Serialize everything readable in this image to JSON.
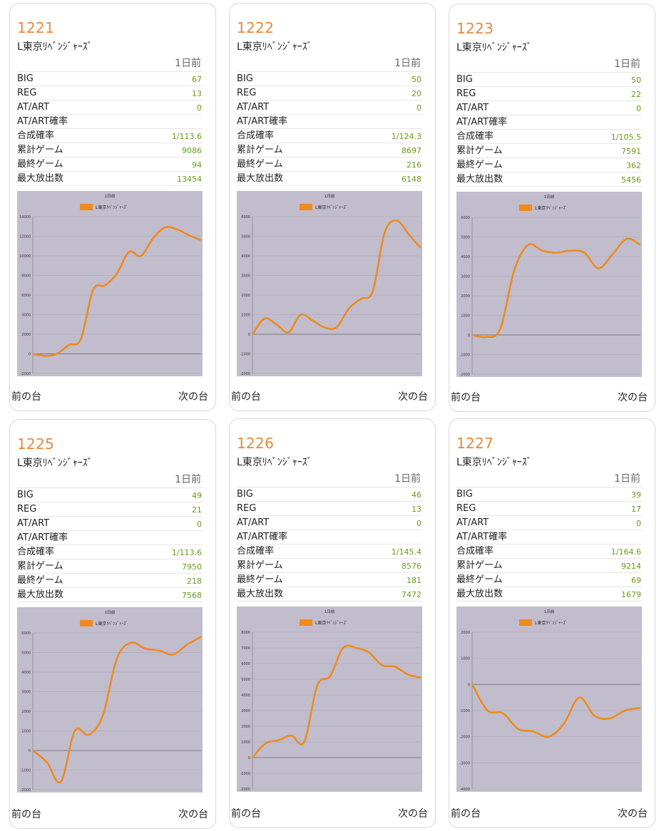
{
  "cards": [
    {
      "number": "1221",
      "model": "L東京ﾘﾍﾞﾝｼﾞｬｰｽﾞ",
      "period": "1日前",
      "stats": [
        {
          "label": "BIG",
          "value": "67"
        },
        {
          "label": "REG",
          "value": "13"
        },
        {
          "label": "AT/ART",
          "value": "0"
        },
        {
          "label": "AT/ART確率",
          "value": ""
        },
        {
          "label": "合成確率",
          "value": "1/113.6"
        },
        {
          "label": "累計ゲーム",
          "value": "9086"
        },
        {
          "label": "最終ゲーム",
          "value": "94"
        },
        {
          "label": "最大放出数",
          "value": "13454"
        }
      ],
      "prev_label": "前の台",
      "next_label": "次の台",
      "chart_data": {
        "type": "line",
        "title": "1日前",
        "legend": [
          "L東京ﾘﾍﾞﾝｼﾞｬｰｽﾞ"
        ],
        "series": [
          {
            "name": "L東京ﾘﾍﾞﾝｼﾞｬｰｽﾞ",
            "color": "#ef8a1e",
            "values": [
              0,
              -200,
              0,
              900,
              1500,
              6500,
              7000,
              8200,
              10400,
              10000,
              11800,
              12900,
              12700,
              12100,
              11600
            ]
          }
        ],
        "ylim": [
          -2000,
          14000
        ],
        "yticks": [
          -2000,
          0,
          2000,
          4000,
          6000,
          8000,
          10000,
          12000,
          14000
        ]
      }
    },
    {
      "number": "1222",
      "model": "L東京ﾘﾍﾞﾝｼﾞｬｰｽﾞ",
      "period": "1日前",
      "stats": [
        {
          "label": "BIG",
          "value": "50"
        },
        {
          "label": "REG",
          "value": "20"
        },
        {
          "label": "AT/ART",
          "value": "0"
        },
        {
          "label": "AT/ART確率",
          "value": ""
        },
        {
          "label": "合成確率",
          "value": "1/124.3"
        },
        {
          "label": "累計ゲーム",
          "value": "8697"
        },
        {
          "label": "最終ゲーム",
          "value": "216"
        },
        {
          "label": "最大放出数",
          "value": "6148"
        }
      ],
      "prev_label": "前の台",
      "next_label": "次の台",
      "chart_data": {
        "type": "line",
        "title": "1日前",
        "legend": [
          "L東京ﾘﾍﾞﾝｼﾞｬｰｽﾞ"
        ],
        "series": [
          {
            "name": "L東京ﾘﾍﾞﾝｼﾞｬｰｽﾞ",
            "color": "#ef8a1e",
            "values": [
              0,
              800,
              500,
              100,
              1000,
              700,
              350,
              350,
              1300,
              1800,
              2200,
              5200,
              5800,
              5100,
              4400
            ]
          }
        ],
        "ylim": [
          -2000,
          6000
        ],
        "yticks": [
          -2000,
          -1000,
          0,
          1000,
          2000,
          3000,
          4000,
          5000,
          6000
        ]
      }
    },
    {
      "number": "1223",
      "model": "L東京ﾘﾍﾞﾝｼﾞｬｰｽﾞ",
      "period": "1日前",
      "stats": [
        {
          "label": "BIG",
          "value": "50"
        },
        {
          "label": "REG",
          "value": "22"
        },
        {
          "label": "AT/ART",
          "value": "0"
        },
        {
          "label": "AT/ART確率",
          "value": ""
        },
        {
          "label": "合成確率",
          "value": "1/105.5"
        },
        {
          "label": "累計ゲーム",
          "value": "7591"
        },
        {
          "label": "最終ゲーム",
          "value": "362"
        },
        {
          "label": "最大放出数",
          "value": "5456"
        }
      ],
      "prev_label": "前の台",
      "next_label": "次の台",
      "chart_data": {
        "type": "line",
        "title": "1日前",
        "legend": [
          "L東京ﾘﾍﾞﾝｼﾞｬｰｽﾞ"
        ],
        "series": [
          {
            "name": "L東京ﾘﾍﾞﾝｼﾞｬｰｽﾞ",
            "color": "#ef8a1e",
            "values": [
              0,
              -100,
              300,
              3300,
              4600,
              4300,
              4200,
              4300,
              4200,
              3400,
              4100,
              4900,
              4600
            ]
          }
        ],
        "ylim": [
          -2000,
          6000
        ],
        "yticks": [
          -2000,
          -1000,
          0,
          1000,
          2000,
          3000,
          4000,
          5000,
          6000
        ]
      }
    },
    {
      "number": "1225",
      "model": "L東京ﾘﾍﾞﾝｼﾞｬｰｽﾞ",
      "period": "1日前",
      "stats": [
        {
          "label": "BIG",
          "value": "49"
        },
        {
          "label": "REG",
          "value": "21"
        },
        {
          "label": "AT/ART",
          "value": "0"
        },
        {
          "label": "AT/ART確率",
          "value": ""
        },
        {
          "label": "合成確率",
          "value": "1/113.6"
        },
        {
          "label": "累計ゲーム",
          "value": "7950"
        },
        {
          "label": "最終ゲーム",
          "value": "218"
        },
        {
          "label": "最大放出数",
          "value": "7568"
        }
      ],
      "prev_label": "前の台",
      "next_label": "次の台",
      "chart_data": {
        "type": "line",
        "title": "1日前",
        "legend": [
          "L東京ﾘﾍﾞﾝｼﾞｬｰｽﾞ"
        ],
        "series": [
          {
            "name": "L東京ﾘﾍﾞﾝｼﾞｬｰｽﾞ",
            "color": "#ef8a1e",
            "values": [
              0,
              -600,
              -1600,
              1000,
              800,
              1800,
              4700,
              5500,
              5200,
              5100,
              4900,
              5400,
              5800
            ]
          }
        ],
        "ylim": [
          -2000,
          6000
        ],
        "yticks": [
          -2000,
          -1000,
          0,
          1000,
          2000,
          3000,
          4000,
          5000,
          6000
        ]
      }
    },
    {
      "number": "1226",
      "model": "L東京ﾘﾍﾞﾝｼﾞｬｰｽﾞ",
      "period": "1日前",
      "stats": [
        {
          "label": "BIG",
          "value": "46"
        },
        {
          "label": "REG",
          "value": "13"
        },
        {
          "label": "AT/ART",
          "value": "0"
        },
        {
          "label": "AT/ART確率",
          "value": ""
        },
        {
          "label": "合成確率",
          "value": "1/145.4"
        },
        {
          "label": "累計ゲーム",
          "value": "8576"
        },
        {
          "label": "最終ゲーム",
          "value": "181"
        },
        {
          "label": "最大放出数",
          "value": "7472"
        }
      ],
      "prev_label": "前の台",
      "next_label": "次の台",
      "chart_data": {
        "type": "line",
        "title": "1日前",
        "legend": [
          "L東京ﾘﾍﾞﾝｼﾞｬｰｽﾞ"
        ],
        "series": [
          {
            "name": "L東京ﾘﾍﾞﾝｼﾞｬｰｽﾞ",
            "color": "#ef8a1e",
            "values": [
              0,
              900,
              1100,
              1400,
              1000,
              4600,
              5200,
              7000,
              7000,
              6700,
              5900,
              5800,
              5300,
              5100
            ]
          }
        ],
        "ylim": [
          -2000,
          8000
        ],
        "yticks": [
          -2000,
          -1000,
          0,
          1000,
          2000,
          3000,
          4000,
          5000,
          6000,
          7000,
          8000
        ]
      }
    },
    {
      "number": "1227",
      "model": "L東京ﾘﾍﾞﾝｼﾞｬｰｽﾞ",
      "period": "1日前",
      "stats": [
        {
          "label": "BIG",
          "value": "39"
        },
        {
          "label": "REG",
          "value": "17"
        },
        {
          "label": "AT/ART",
          "value": "0"
        },
        {
          "label": "AT/ART確率",
          "value": ""
        },
        {
          "label": "合成確率",
          "value": "1/164.6"
        },
        {
          "label": "累計ゲーム",
          "value": "9214"
        },
        {
          "label": "最終ゲーム",
          "value": "69"
        },
        {
          "label": "最大放出数",
          "value": "1679"
        }
      ],
      "prev_label": "前の台",
      "next_label": "次の台",
      "chart_data": {
        "type": "line",
        "title": "1日前",
        "legend": [
          "L東京ﾘﾍﾞﾝｼﾞｬｰｽﾞ"
        ],
        "series": [
          {
            "name": "L東京ﾘﾍﾞﾝｼﾞｬｰｽﾞ",
            "color": "#ef8a1e",
            "values": [
              0,
              -1000,
              -1100,
              -1700,
              -1800,
              -2000,
              -1500,
              -500,
              -1200,
              -1300,
              -1000,
              -900
            ]
          }
        ],
        "ylim": [
          -4000,
          2000
        ],
        "yticks": [
          -4000,
          -3000,
          -2000,
          -1000,
          0,
          1000,
          2000
        ]
      }
    }
  ]
}
